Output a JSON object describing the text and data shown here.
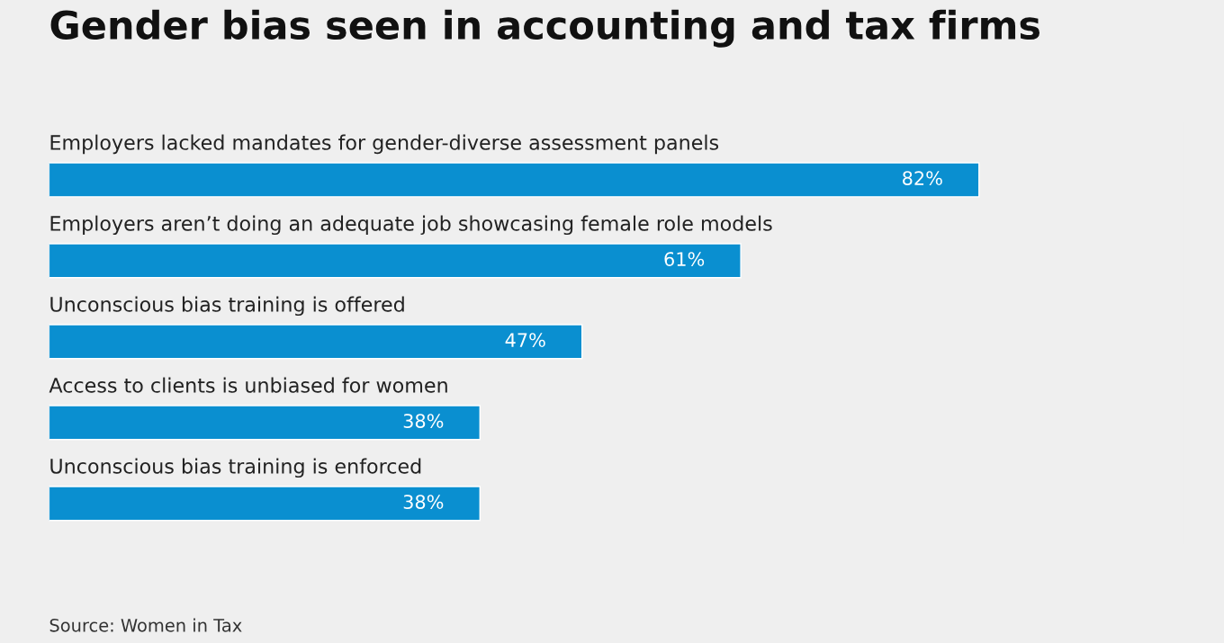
{
  "chart_data": {
    "type": "bar",
    "orientation": "horizontal",
    "title": "Gender bias seen in accounting and tax firms",
    "categories": [
      "Employers lacked mandates for gender-diverse assessment panels",
      "Employers aren’t doing an adequate job showcasing female role models",
      "Unconscious bias training is offered",
      "Access to clients is unbiased for women",
      "Unconscious bias training is enforced"
    ],
    "values": [
      82,
      61,
      47,
      38,
      38
    ],
    "value_labels": [
      "82%",
      "61%",
      "47%",
      "38%",
      "38%"
    ],
    "color": "#0a8fd0",
    "annotations": [
      "Source: Women in Tax"
    ]
  }
}
